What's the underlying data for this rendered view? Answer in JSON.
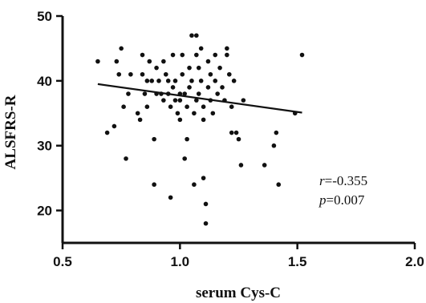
{
  "chart_data": {
    "type": "scatter",
    "xlabel": "serum Cys-C",
    "ylabel": "ALSFRS-R",
    "xlim": [
      0.5,
      2.0
    ],
    "ylim": [
      15,
      50
    ],
    "x_ticks": [
      "0.5",
      "1.0",
      "1.5",
      "2.0"
    ],
    "y_ticks": [
      "20",
      "30",
      "40",
      "50"
    ],
    "annotation": {
      "r_label": "r",
      "r_value": "=-0.355",
      "p_label": "p",
      "p_value": "=0.007"
    },
    "regression": {
      "x": [
        0.65,
        1.52
      ],
      "y": [
        39.5,
        35.1
      ]
    },
    "points": [
      {
        "x": 0.65,
        "y": 43
      },
      {
        "x": 0.69,
        "y": 32
      },
      {
        "x": 0.72,
        "y": 33
      },
      {
        "x": 0.73,
        "y": 43
      },
      {
        "x": 0.74,
        "y": 41
      },
      {
        "x": 0.75,
        "y": 45
      },
      {
        "x": 0.76,
        "y": 36
      },
      {
        "x": 0.77,
        "y": 28
      },
      {
        "x": 0.78,
        "y": 38
      },
      {
        "x": 0.79,
        "y": 41
      },
      {
        "x": 0.82,
        "y": 35
      },
      {
        "x": 0.83,
        "y": 34
      },
      {
        "x": 0.84,
        "y": 44
      },
      {
        "x": 0.84,
        "y": 41
      },
      {
        "x": 0.85,
        "y": 38
      },
      {
        "x": 0.86,
        "y": 40
      },
      {
        "x": 0.86,
        "y": 36
      },
      {
        "x": 0.87,
        "y": 43
      },
      {
        "x": 0.88,
        "y": 40
      },
      {
        "x": 0.89,
        "y": 24
      },
      {
        "x": 0.89,
        "y": 31
      },
      {
        "x": 0.9,
        "y": 42
      },
      {
        "x": 0.9,
        "y": 38
      },
      {
        "x": 0.91,
        "y": 40
      },
      {
        "x": 0.92,
        "y": 38
      },
      {
        "x": 0.93,
        "y": 37
      },
      {
        "x": 0.93,
        "y": 43
      },
      {
        "x": 0.94,
        "y": 41
      },
      {
        "x": 0.95,
        "y": 40
      },
      {
        "x": 0.95,
        "y": 38
      },
      {
        "x": 0.96,
        "y": 22
      },
      {
        "x": 0.96,
        "y": 36
      },
      {
        "x": 0.97,
        "y": 44
      },
      {
        "x": 0.97,
        "y": 39
      },
      {
        "x": 0.98,
        "y": 37
      },
      {
        "x": 0.98,
        "y": 40
      },
      {
        "x": 0.99,
        "y": 35
      },
      {
        "x": 1.0,
        "y": 34
      },
      {
        "x": 1.0,
        "y": 38
      },
      {
        "x": 1.0,
        "y": 37
      },
      {
        "x": 1.01,
        "y": 41
      },
      {
        "x": 1.01,
        "y": 44
      },
      {
        "x": 1.02,
        "y": 28
      },
      {
        "x": 1.02,
        "y": 38
      },
      {
        "x": 1.03,
        "y": 31
      },
      {
        "x": 1.03,
        "y": 36
      },
      {
        "x": 1.04,
        "y": 39
      },
      {
        "x": 1.04,
        "y": 42
      },
      {
        "x": 1.05,
        "y": 47
      },
      {
        "x": 1.05,
        "y": 40
      },
      {
        "x": 1.06,
        "y": 24
      },
      {
        "x": 1.06,
        "y": 35
      },
      {
        "x": 1.07,
        "y": 47
      },
      {
        "x": 1.07,
        "y": 44
      },
      {
        "x": 1.07,
        "y": 37
      },
      {
        "x": 1.08,
        "y": 42
      },
      {
        "x": 1.08,
        "y": 38
      },
      {
        "x": 1.09,
        "y": 45
      },
      {
        "x": 1.09,
        "y": 40
      },
      {
        "x": 1.1,
        "y": 25
      },
      {
        "x": 1.1,
        "y": 36
      },
      {
        "x": 1.1,
        "y": 34
      },
      {
        "x": 1.11,
        "y": 18
      },
      {
        "x": 1.11,
        "y": 21
      },
      {
        "x": 1.12,
        "y": 43
      },
      {
        "x": 1.12,
        "y": 39
      },
      {
        "x": 1.13,
        "y": 41
      },
      {
        "x": 1.13,
        "y": 37
      },
      {
        "x": 1.14,
        "y": 35
      },
      {
        "x": 1.15,
        "y": 44
      },
      {
        "x": 1.15,
        "y": 40
      },
      {
        "x": 1.16,
        "y": 38
      },
      {
        "x": 1.17,
        "y": 42
      },
      {
        "x": 1.18,
        "y": 39
      },
      {
        "x": 1.19,
        "y": 37
      },
      {
        "x": 1.2,
        "y": 45
      },
      {
        "x": 1.2,
        "y": 44
      },
      {
        "x": 1.21,
        "y": 41
      },
      {
        "x": 1.22,
        "y": 36
      },
      {
        "x": 1.22,
        "y": 32
      },
      {
        "x": 1.23,
        "y": 40
      },
      {
        "x": 1.24,
        "y": 32
      },
      {
        "x": 1.25,
        "y": 31
      },
      {
        "x": 1.26,
        "y": 27
      },
      {
        "x": 1.27,
        "y": 37
      },
      {
        "x": 1.36,
        "y": 27
      },
      {
        "x": 1.4,
        "y": 30
      },
      {
        "x": 1.41,
        "y": 32
      },
      {
        "x": 1.42,
        "y": 24
      },
      {
        "x": 1.49,
        "y": 35
      },
      {
        "x": 1.52,
        "y": 44
      }
    ]
  }
}
